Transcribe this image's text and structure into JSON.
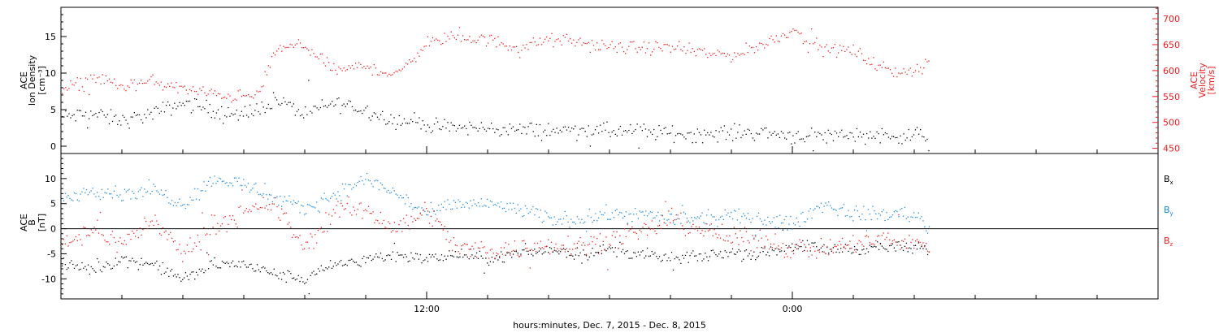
{
  "colors": {
    "black": "#000000",
    "red": "#ee1c1c",
    "blue": "#1c8ae0"
  },
  "x_axis": {
    "caption": "hours:minutes, Dec.  7, 2015 - Dec.  8, 2015",
    "range_hours": [
      0,
      36
    ],
    "major_ticks": [
      {
        "hour": 12,
        "label": "12:00"
      },
      {
        "hour": 24,
        "label": "0:00"
      }
    ],
    "minor_tick_hours": [
      2,
      4,
      6,
      8,
      10,
      14,
      16,
      18,
      20,
      22,
      26,
      28,
      30,
      32,
      34
    ],
    "data_end_hour": 28.5
  },
  "chart_data": [
    {
      "type": "scatter",
      "panel": "top",
      "ylabel_left": [
        "ACE",
        "Ion Density",
        "[cm⁻³]"
      ],
      "ylabel_right": [
        "ACE",
        "Velocity",
        "[km/s]"
      ],
      "left_axis": {
        "ylim": [
          -1,
          19
        ],
        "ticks": [
          0,
          5,
          10,
          15
        ],
        "tick_labels": [
          "0",
          "5",
          "10",
          "15"
        ]
      },
      "right_axis": {
        "ylim": [
          440,
          722
        ],
        "ticks": [
          450,
          500,
          550,
          600,
          650,
          700
        ],
        "tick_labels": [
          "450",
          "500",
          "550",
          "600",
          "650",
          "700"
        ]
      },
      "series": [
        {
          "name": "Ion Density",
          "axis": "left",
          "color": "#000000",
          "x_hours": [
            0,
            1,
            2,
            3,
            4,
            5,
            6,
            7,
            8,
            9,
            10,
            11,
            11.9,
            12.1,
            13,
            14,
            15,
            16,
            17,
            18,
            19,
            20,
            21,
            22,
            23,
            24,
            25,
            26,
            27,
            28,
            28.5
          ],
          "y": [
            4,
            4.5,
            3.5,
            4.5,
            6,
            5,
            4,
            6.5,
            4.5,
            6,
            5,
            3.5,
            3.5,
            2.6,
            2.6,
            2.5,
            2.3,
            2.2,
            2.3,
            2.1,
            2.1,
            1.8,
            1.7,
            1.9,
            2.0,
            1.5,
            1.5,
            1.7,
            1.5,
            1.5,
            1.8
          ],
          "spread": 1.6
        },
        {
          "name": "Velocity",
          "axis": "right",
          "color": "#ee1c1c",
          "x_hours": [
            0,
            1,
            2,
            3,
            4,
            5,
            6,
            6.5,
            7,
            8,
            9,
            10,
            11,
            12,
            13,
            14,
            15,
            16,
            17,
            18,
            19,
            20,
            21,
            22,
            23,
            24,
            25,
            26,
            27,
            28,
            28.5
          ],
          "y": [
            560,
            590,
            570,
            580,
            565,
            555,
            550,
            555,
            640,
            650,
            600,
            610,
            590,
            655,
            665,
            660,
            645,
            660,
            655,
            645,
            645,
            645,
            635,
            630,
            650,
            680,
            640,
            640,
            600,
            600,
            620
          ],
          "spread": 18
        }
      ]
    },
    {
      "type": "scatter",
      "panel": "bottom",
      "ylabel_left": [
        "ACE",
        "B",
        "[nT]"
      ],
      "ylim": [
        -14,
        15
      ],
      "yticks": [
        -10,
        -5,
        0,
        5,
        10
      ],
      "ytick_labels": [
        "-10",
        "-5",
        "0",
        "5",
        "10"
      ],
      "zero_line": true,
      "series": [
        {
          "name": "Bx",
          "name_base": "B",
          "name_sub": "x",
          "color": "#000000",
          "x_hours": [
            0,
            1,
            2,
            3,
            4,
            5,
            6,
            7,
            8,
            9,
            10,
            11,
            12,
            13,
            14,
            15,
            16,
            17,
            18,
            19,
            20,
            21,
            22,
            23,
            24,
            25,
            26,
            27,
            28,
            28.5
          ],
          "y": [
            -7,
            -8,
            -6,
            -7,
            -10,
            -7,
            -7,
            -9,
            -10,
            -7,
            -6,
            -5,
            -6,
            -5,
            -6,
            -5,
            -4,
            -5,
            -4,
            -5,
            -6,
            -5.5,
            -4.5,
            -5,
            -3,
            -4,
            -4,
            -3.5,
            -4,
            -4
          ],
          "spread": 1.8
        },
        {
          "name": "By",
          "name_base": "B",
          "name_sub": "y",
          "color": "#1c8ae0",
          "x_hours": [
            0,
            1,
            2,
            3,
            4,
            5,
            6,
            7,
            8,
            9,
            10,
            11,
            12,
            13,
            14,
            15,
            16,
            17,
            18,
            19,
            20,
            21,
            22,
            23,
            24,
            25,
            26,
            27,
            28,
            28.5
          ],
          "y": [
            6,
            8,
            7,
            8,
            5,
            10,
            9,
            6,
            4,
            7,
            10,
            7,
            3,
            5,
            5,
            4,
            2,
            2,
            3,
            3,
            2,
            2,
            2.5,
            2,
            1,
            5,
            3,
            3,
            3,
            0
          ],
          "spread": 2.2
        },
        {
          "name": "Bz",
          "name_base": "B",
          "name_sub": "z",
          "color": "#ee1c1c",
          "x_hours": [
            0,
            1,
            2,
            3,
            4,
            5,
            6,
            7,
            8,
            9,
            10,
            11,
            12,
            13,
            14,
            15,
            16,
            17,
            18,
            19,
            20,
            21,
            22,
            23,
            24,
            25,
            26,
            27,
            28,
            28.5
          ],
          "y": [
            -3,
            0,
            -3,
            2,
            -5,
            1,
            3,
            5,
            -4,
            4,
            4,
            0,
            4,
            -4,
            -4,
            -4,
            -3,
            -3,
            -2,
            -1,
            2,
            0,
            -2,
            -2,
            -4,
            -4,
            -3,
            -2,
            -3,
            -3
          ],
          "spread": 3.0
        }
      ]
    }
  ]
}
